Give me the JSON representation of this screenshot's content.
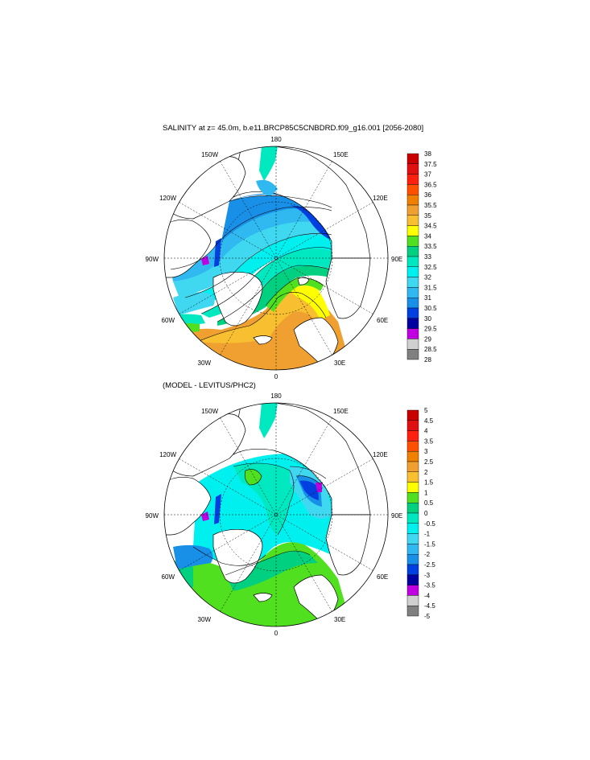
{
  "titles": {
    "top": "SALINITY at z=  45.0m, b.e11.BRCP85C5CNBDRD.f09_g16.001 [2056-2080]",
    "bottom": "(MODEL - LEVITUS/PHC2)"
  },
  "chart_data": [
    {
      "type": "heatmap",
      "projection": "north-polar-stereographic",
      "title": "SALINITY at z=  45.0m, b.e11.BRCP85C5CNBDRD.f09_g16.001 [2056-2080]",
      "longitude_labels": [
        "180",
        "150E",
        "120E",
        "90E",
        "60E",
        "30E",
        "0",
        "30W",
        "60W",
        "90W",
        "120W",
        "150W"
      ],
      "colorbar": {
        "levels": [
          "38",
          "37.5",
          "37",
          "36.5",
          "36",
          "35.5",
          "35",
          "34.5",
          "34",
          "33.5",
          "33",
          "32.5",
          "32",
          "31.5",
          "31",
          "30.5",
          "30",
          "29.5",
          "29",
          "28.5",
          "28"
        ],
        "colors": [
          "#c80000",
          "#e01010",
          "#ff2010",
          "#ff5000",
          "#f08000",
          "#f0a030",
          "#f8c030",
          "#ffff00",
          "#50e020",
          "#00d080",
          "#00e8c0",
          "#00f0f0",
          "#40d8f0",
          "#30b8f0",
          "#1890e8",
          "#0040e0",
          "#0000a0",
          "#c000e0",
          "#d0d0d0",
          "#808080"
        ]
      }
    },
    {
      "type": "heatmap",
      "projection": "north-polar-stereographic",
      "title": "(MODEL - LEVITUS/PHC2)",
      "longitude_labels": [
        "180",
        "150E",
        "120E",
        "90E",
        "60E",
        "30E",
        "0",
        "30W",
        "60W",
        "90W",
        "120W",
        "150W"
      ],
      "colorbar": {
        "levels": [
          "5",
          "4.5",
          "4",
          "3.5",
          "3",
          "2.5",
          "2",
          "1.5",
          "1",
          "0.5",
          "0",
          "-0.5",
          "-1",
          "-1.5",
          "-2",
          "-2.5",
          "-3",
          "-3.5",
          "-4",
          "-4.5",
          "-5"
        ],
        "colors": [
          "#c80000",
          "#e01010",
          "#ff2010",
          "#ff5000",
          "#f08000",
          "#f0a030",
          "#f8c030",
          "#ffff00",
          "#50e020",
          "#00d080",
          "#00e8c0",
          "#00f0f0",
          "#40d8f0",
          "#30b8f0",
          "#1890e8",
          "#0040e0",
          "#0000a0",
          "#c000e0",
          "#d0d0d0",
          "#808080"
        ]
      }
    }
  ]
}
